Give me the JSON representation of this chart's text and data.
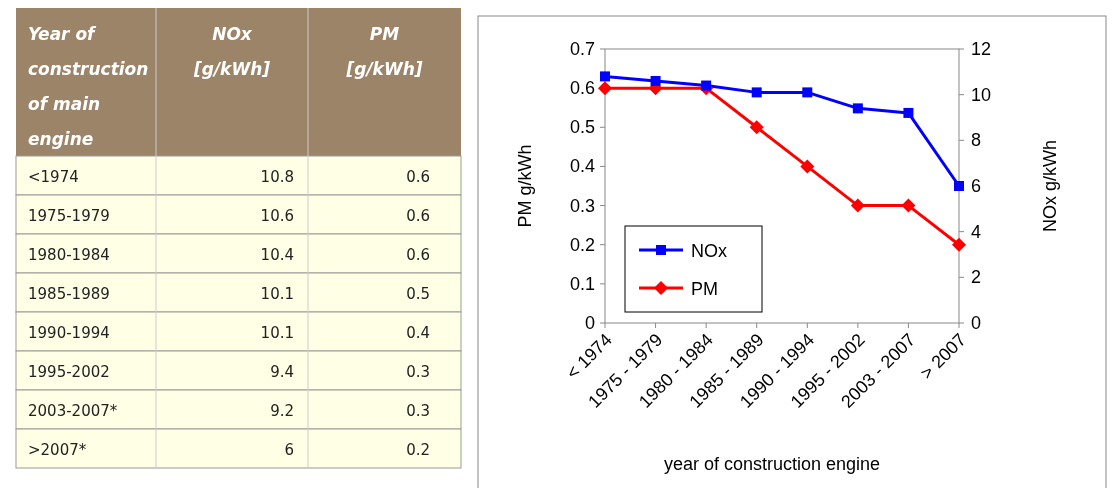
{
  "chart_data": [
    {
      "type": "other",
      "xlabel": "Year of construction of main engine",
      "categories": [
        "<1974",
        "1975-1979",
        "1980-1984",
        "1985-1989",
        "1990-1994",
        "1995-2002",
        "2003-2007*",
        ">2007*"
      ],
      "data_labels": true,
      "series": [
        {
          "name": "NOx [g/kWh]",
          "values": [
            10.8,
            10.6,
            10.4,
            10.1,
            10.1,
            9.4,
            9.2,
            6
          ]
        },
        {
          "name": "PM [g/kWh]",
          "values": [
            0.6,
            0.6,
            0.6,
            0.5,
            0.4,
            0.3,
            0.3,
            0.2
          ]
        }
      ]
    },
    {
      "type": "line",
      "xlabel": "year of construction engine",
      "ylabel": "PM g/kWh",
      "y2label": "NOx g/kWh",
      "categories": [
        "< 1974",
        "1975 - 1979",
        "1980 - 1984",
        "1985 - 1989",
        "1990 - 1994",
        "1995 - 2002",
        "2003 - 2007",
        "> 2007"
      ],
      "ylim": [
        0,
        0.7
      ],
      "yticks": [
        0,
        0.1,
        0.2,
        0.3,
        0.4,
        0.5,
        0.6,
        0.7
      ],
      "y2lim": [
        0,
        12
      ],
      "y2ticks": [
        0,
        2,
        4,
        6,
        8,
        10,
        12
      ],
      "grid": false,
      "legend": "bottom left",
      "series": [
        {
          "name": "NOx",
          "color": "#0000ff",
          "axis": "y2",
          "marker": "square",
          "values": [
            10.8,
            10.6,
            10.4,
            10.1,
            10.1,
            9.4,
            9.2,
            6
          ]
        },
        {
          "name": "PM",
          "color": "#ff0000",
          "marker": "diamond",
          "values": [
            0.6,
            0.6,
            0.6,
            0.5,
            0.4,
            0.3,
            0.3,
            0.2
          ]
        }
      ]
    }
  ]
}
